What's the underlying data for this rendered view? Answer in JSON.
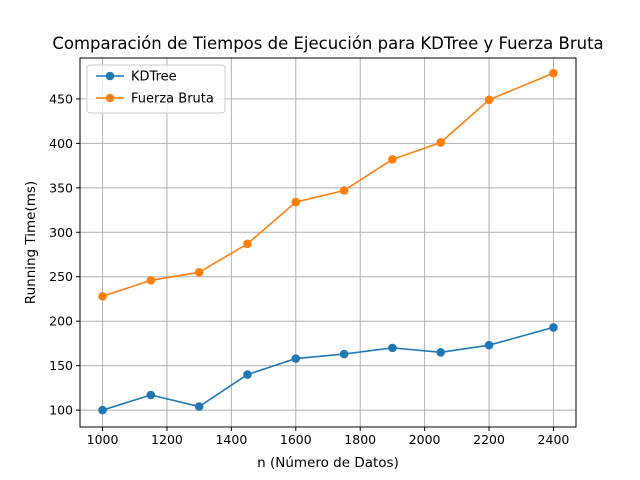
{
  "chart_data": {
    "type": "line",
    "title": "Comparación de Tiempos de Ejecución para KDTree y Fuerza Bruta",
    "xlabel": "n (Número de Datos)",
    "ylabel": "Running Time(ms)",
    "xlim": [
      930,
      2470
    ],
    "ylim": [
      81,
      496
    ],
    "xticks": [
      1000,
      1200,
      1400,
      1600,
      1800,
      2000,
      2200,
      2400
    ],
    "yticks": [
      100,
      150,
      200,
      250,
      300,
      350,
      400,
      450
    ],
    "grid": true,
    "legend_position": "top-left",
    "x": [
      1000,
      1150,
      1300,
      1450,
      1600,
      1750,
      1900,
      2050,
      2200,
      2400
    ],
    "series": [
      {
        "name": "KDTree",
        "color": "#1f77b4",
        "marker": "circle",
        "values": [
          100,
          117,
          104,
          140,
          158,
          163,
          170,
          165,
          173,
          193
        ]
      },
      {
        "name": "Fuerza Bruta",
        "color": "#ff7f0e",
        "marker": "circle",
        "values": [
          228,
          246,
          255,
          287,
          334,
          347,
          382,
          401,
          449,
          479
        ]
      }
    ]
  }
}
